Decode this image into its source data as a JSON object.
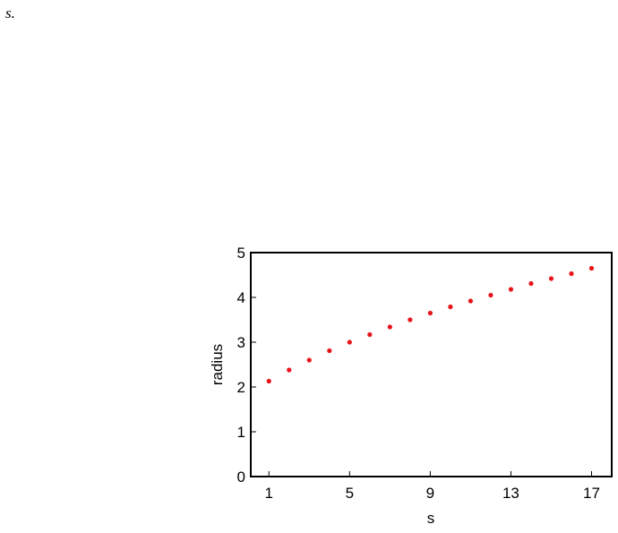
{
  "page_text": "s.",
  "chart_data": {
    "type": "scatter",
    "xlabel": "s",
    "ylabel": "radius",
    "x": [
      1,
      2,
      3,
      4,
      5,
      6,
      7,
      8,
      9,
      10,
      11,
      12,
      13,
      14,
      15,
      16,
      17
    ],
    "values": [
      2.13,
      2.38,
      2.6,
      2.81,
      3.0,
      3.17,
      3.34,
      3.5,
      3.65,
      3.79,
      3.92,
      4.05,
      4.18,
      4.31,
      4.42,
      4.53,
      4.65
    ],
    "color": "#e8141a",
    "xlim": [
      0.1,
      18
    ],
    "ylim": [
      0,
      5
    ],
    "xticks": [
      1,
      5,
      9,
      13,
      17
    ],
    "yticks": [
      0,
      1,
      2,
      3,
      4,
      5
    ]
  }
}
